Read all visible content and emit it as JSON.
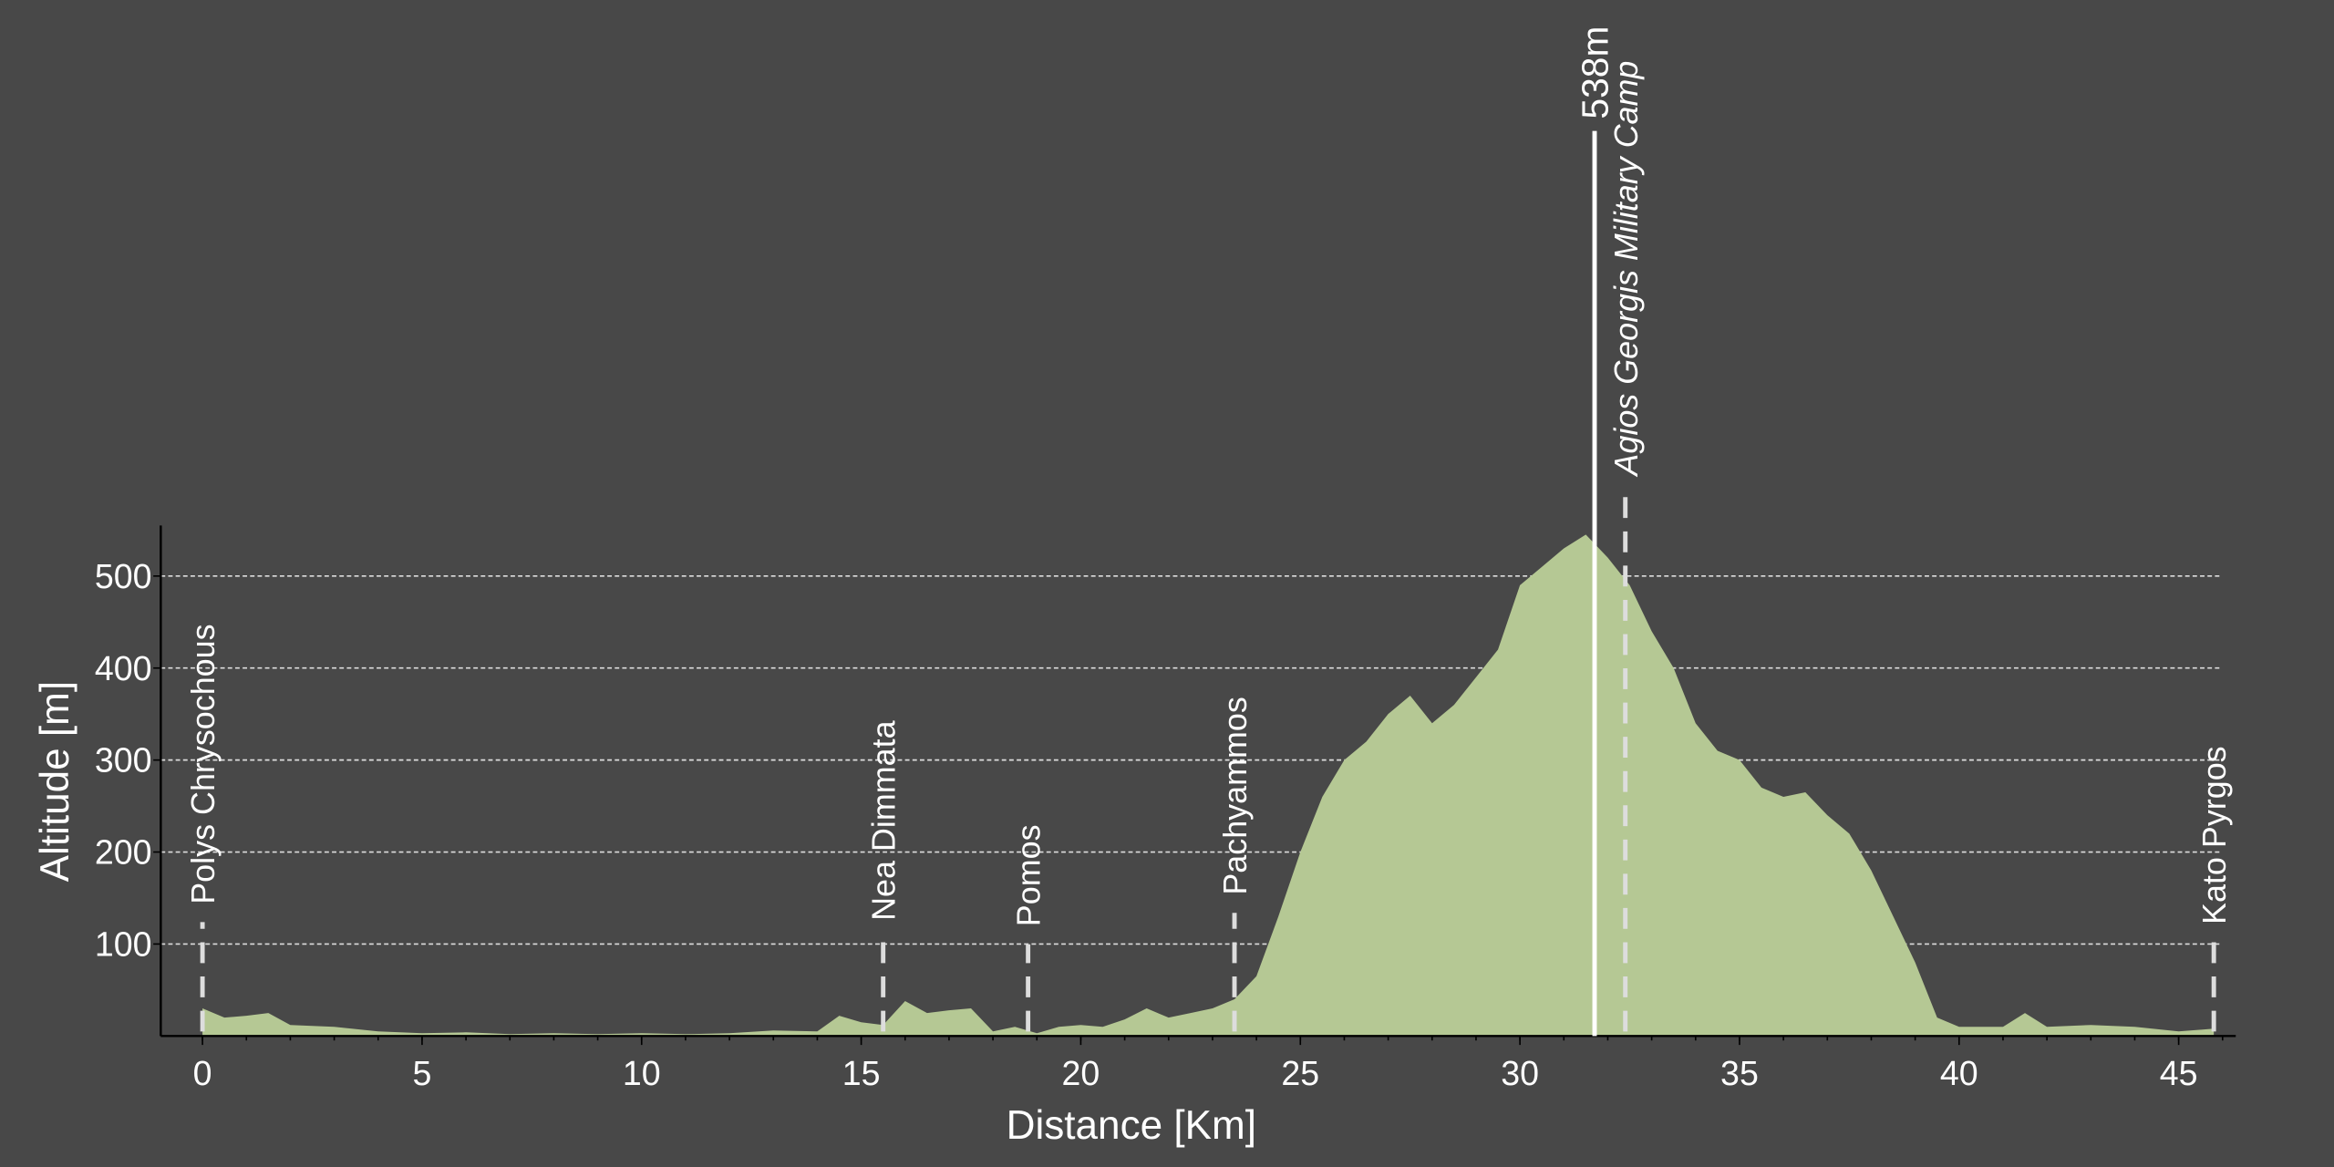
{
  "chart_data": {
    "type": "area",
    "x_label": "Distance [Km]",
    "y_label": "Altitude [m]",
    "color": "#b5c894",
    "grid": true,
    "xlim": [
      -0.95,
      46.3
    ],
    "ylim": [
      0,
      555
    ],
    "xticks": [
      0,
      5,
      10,
      15,
      20,
      25,
      30,
      35,
      40,
      45
    ],
    "yticks": [
      100,
      200,
      300,
      400,
      500
    ],
    "x": [
      0,
      0.5,
      1,
      1.5,
      2,
      3,
      4,
      5,
      6,
      7,
      8,
      9,
      10,
      11,
      12,
      13,
      14,
      14.5,
      15,
      15.5,
      16,
      16.5,
      17,
      17.5,
      18,
      18.5,
      19,
      19.5,
      20,
      20.5,
      21,
      21.5,
      22,
      22.5,
      23,
      23.5,
      24,
      24.5,
      25,
      25.5,
      26,
      26.5,
      27,
      27.5,
      28,
      28.5,
      29,
      29.5,
      30,
      30.5,
      31,
      31.5,
      32,
      32.5,
      33,
      33.5,
      34,
      34.5,
      35,
      35.5,
      36,
      36.5,
      37,
      37.5,
      38,
      38.5,
      39,
      39.5,
      40,
      41,
      41.5,
      42,
      43,
      44,
      45,
      45.8
    ],
    "values": [
      30,
      20,
      22,
      25,
      12,
      10,
      5,
      3,
      4,
      2,
      3,
      2,
      3,
      2,
      3,
      6,
      5,
      22,
      15,
      12,
      38,
      25,
      28,
      30,
      5,
      10,
      3,
      10,
      12,
      10,
      18,
      30,
      20,
      25,
      30,
      40,
      65,
      130,
      200,
      260,
      300,
      320,
      350,
      370,
      340,
      360,
      390,
      420,
      490,
      510,
      530,
      545,
      520,
      490,
      440,
      400,
      340,
      310,
      300,
      270,
      260,
      265,
      240,
      220,
      180,
      130,
      80,
      20,
      10,
      10,
      25,
      10,
      12,
      10,
      5,
      8
    ],
    "waypoints": [
      {
        "x": 0,
        "name": "Polys Chrysochous",
        "italic": false
      },
      {
        "x": 15.5,
        "name": "Nea Dimmata",
        "italic": false
      },
      {
        "x": 18.8,
        "name": "Pomos",
        "italic": false
      },
      {
        "x": 23.5,
        "name": "Pachyammos",
        "italic": false
      },
      {
        "x": 32.4,
        "name": "Agios Georgis Military Camp",
        "italic": true
      },
      {
        "x": 45.8,
        "name": "Kato Pyrgos",
        "italic": false
      }
    ],
    "peak": {
      "x": 31.7,
      "value": 538,
      "label": "538m"
    }
  }
}
